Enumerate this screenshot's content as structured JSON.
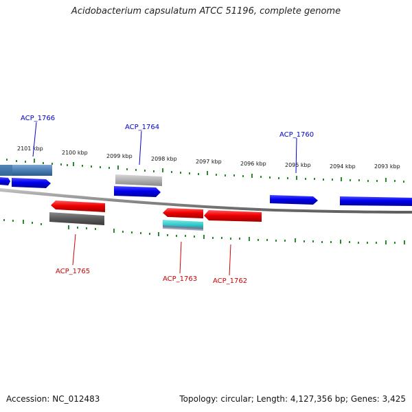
{
  "header": {
    "title": "Acidobacterium capsulatum ATCC 51196, complete genome"
  },
  "footer": {
    "accession": "Accession: NC_012483",
    "summary": "Topology: circular; Length: 4,127,356 bp; Genes: 3,425"
  },
  "ruler": {
    "tick_color": "#2a8a2a",
    "labels": [
      "2101 kbp",
      "2100 kbp",
      "2099 kbp",
      "2098 kbp",
      "2097 kbp",
      "2096 kbp",
      "2095 kbp",
      "2094 kbp",
      "2093 kbp"
    ]
  },
  "genes": {
    "forward_color": "#0000cc",
    "reverse_color": "#cc0000",
    "forward_labels": [
      "ACP_1766",
      "ACP_1764",
      "ACP_1760"
    ],
    "reverse_labels": [
      "ACP_1765",
      "ACP_1763",
      "ACP_1762"
    ]
  },
  "colors": {
    "backbone": "#8a8a8a",
    "blue_feature": "#0000ee",
    "red_feature": "#ee0000",
    "steel_feature": "#4a7fb5",
    "light_gray_feature": "#b0b0b0",
    "dark_gray_feature": "#5a5a5a",
    "cyan_feature": "#33cccc"
  }
}
